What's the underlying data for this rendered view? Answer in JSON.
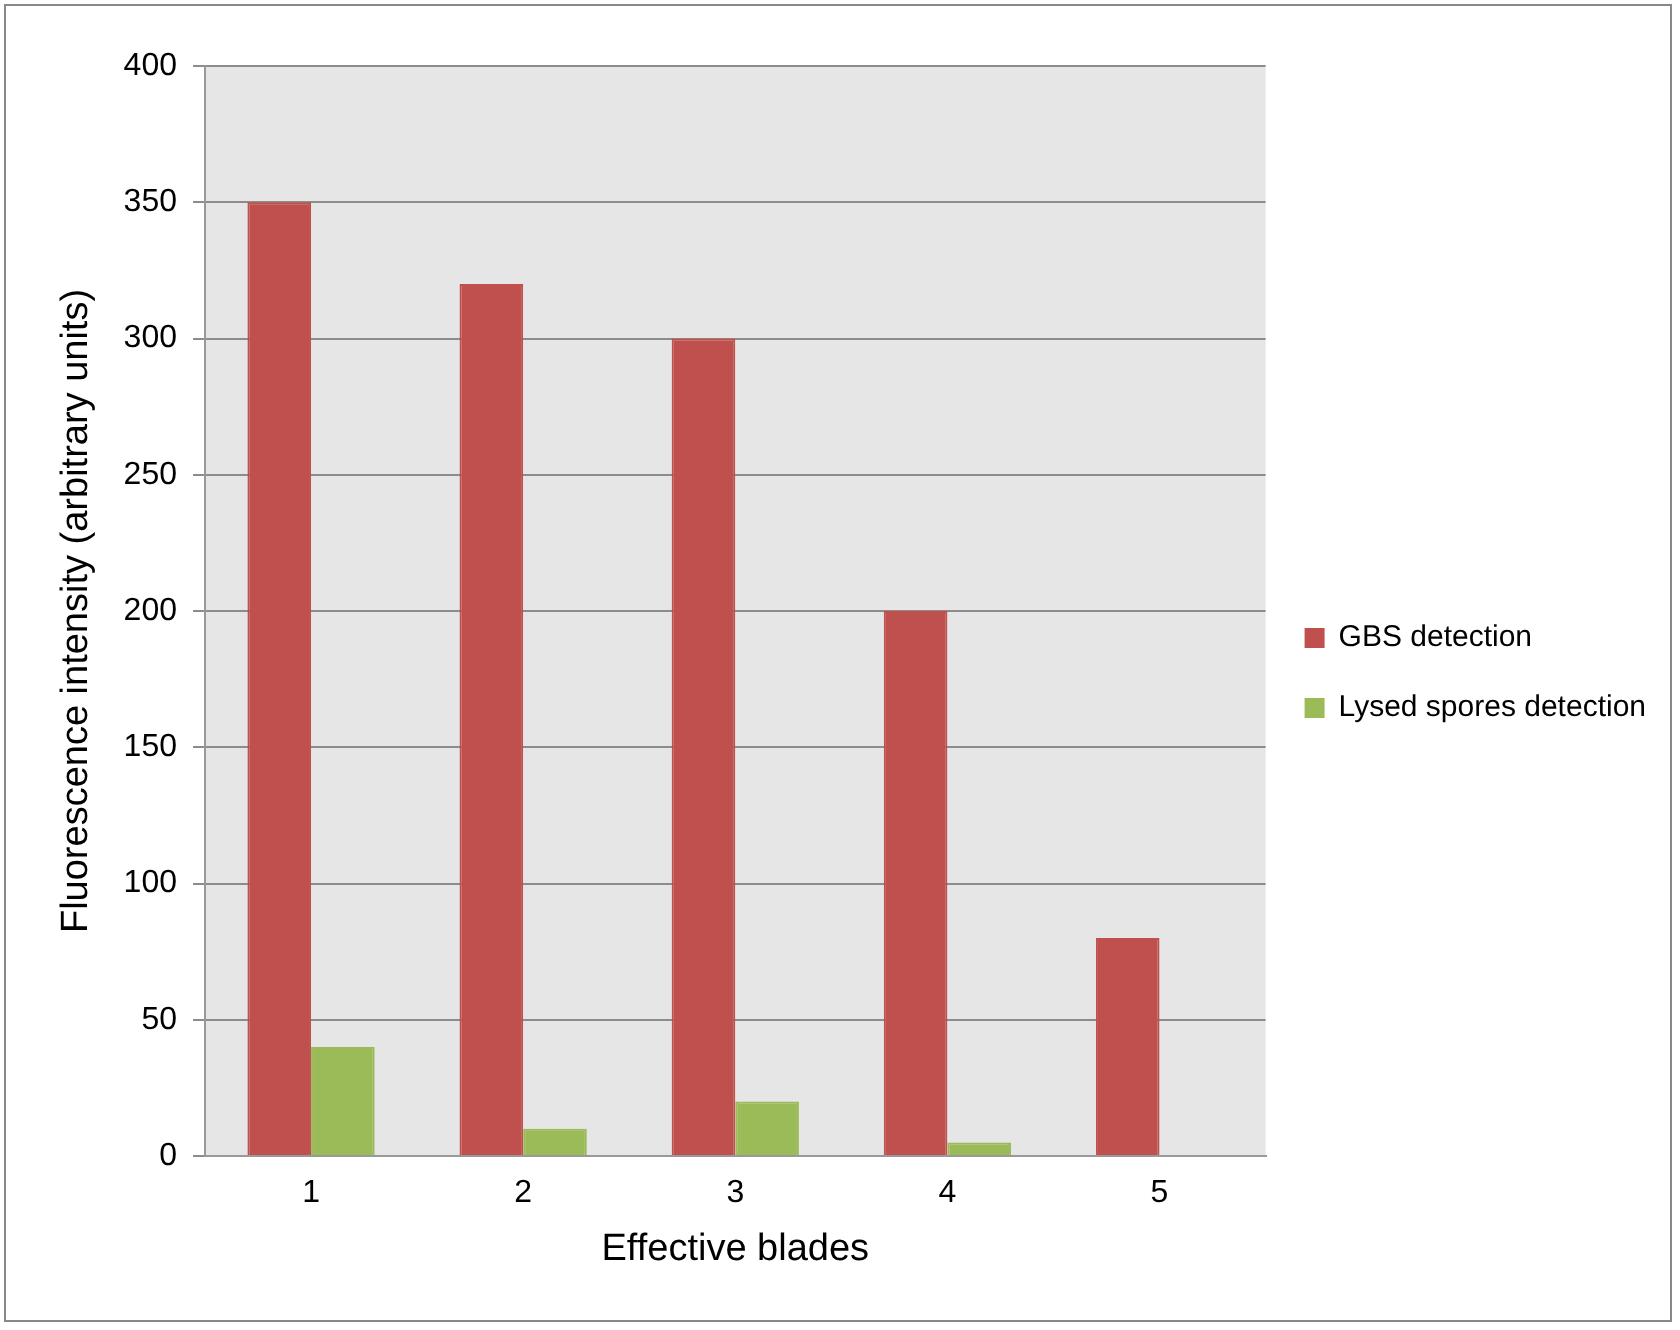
{
  "chart_data": {
    "type": "bar",
    "xlabel": "Effective blades",
    "ylabel": "Fluorescence intensity (arbitrary units)",
    "categories": [
      "1",
      "2",
      "3",
      "4",
      "5"
    ],
    "series": [
      {
        "name": "GBS detection",
        "color": "#c0504d",
        "values": [
          350,
          320,
          300,
          200,
          80
        ]
      },
      {
        "name": "Lysed spores detection",
        "color": "#9bbb59",
        "values": [
          40,
          10,
          20,
          5,
          null
        ]
      }
    ],
    "ylim": [
      0,
      400
    ],
    "yticks": [
      0,
      50,
      100,
      150,
      200,
      250,
      300,
      350,
      400
    ],
    "grid": "y",
    "legend": "right"
  }
}
